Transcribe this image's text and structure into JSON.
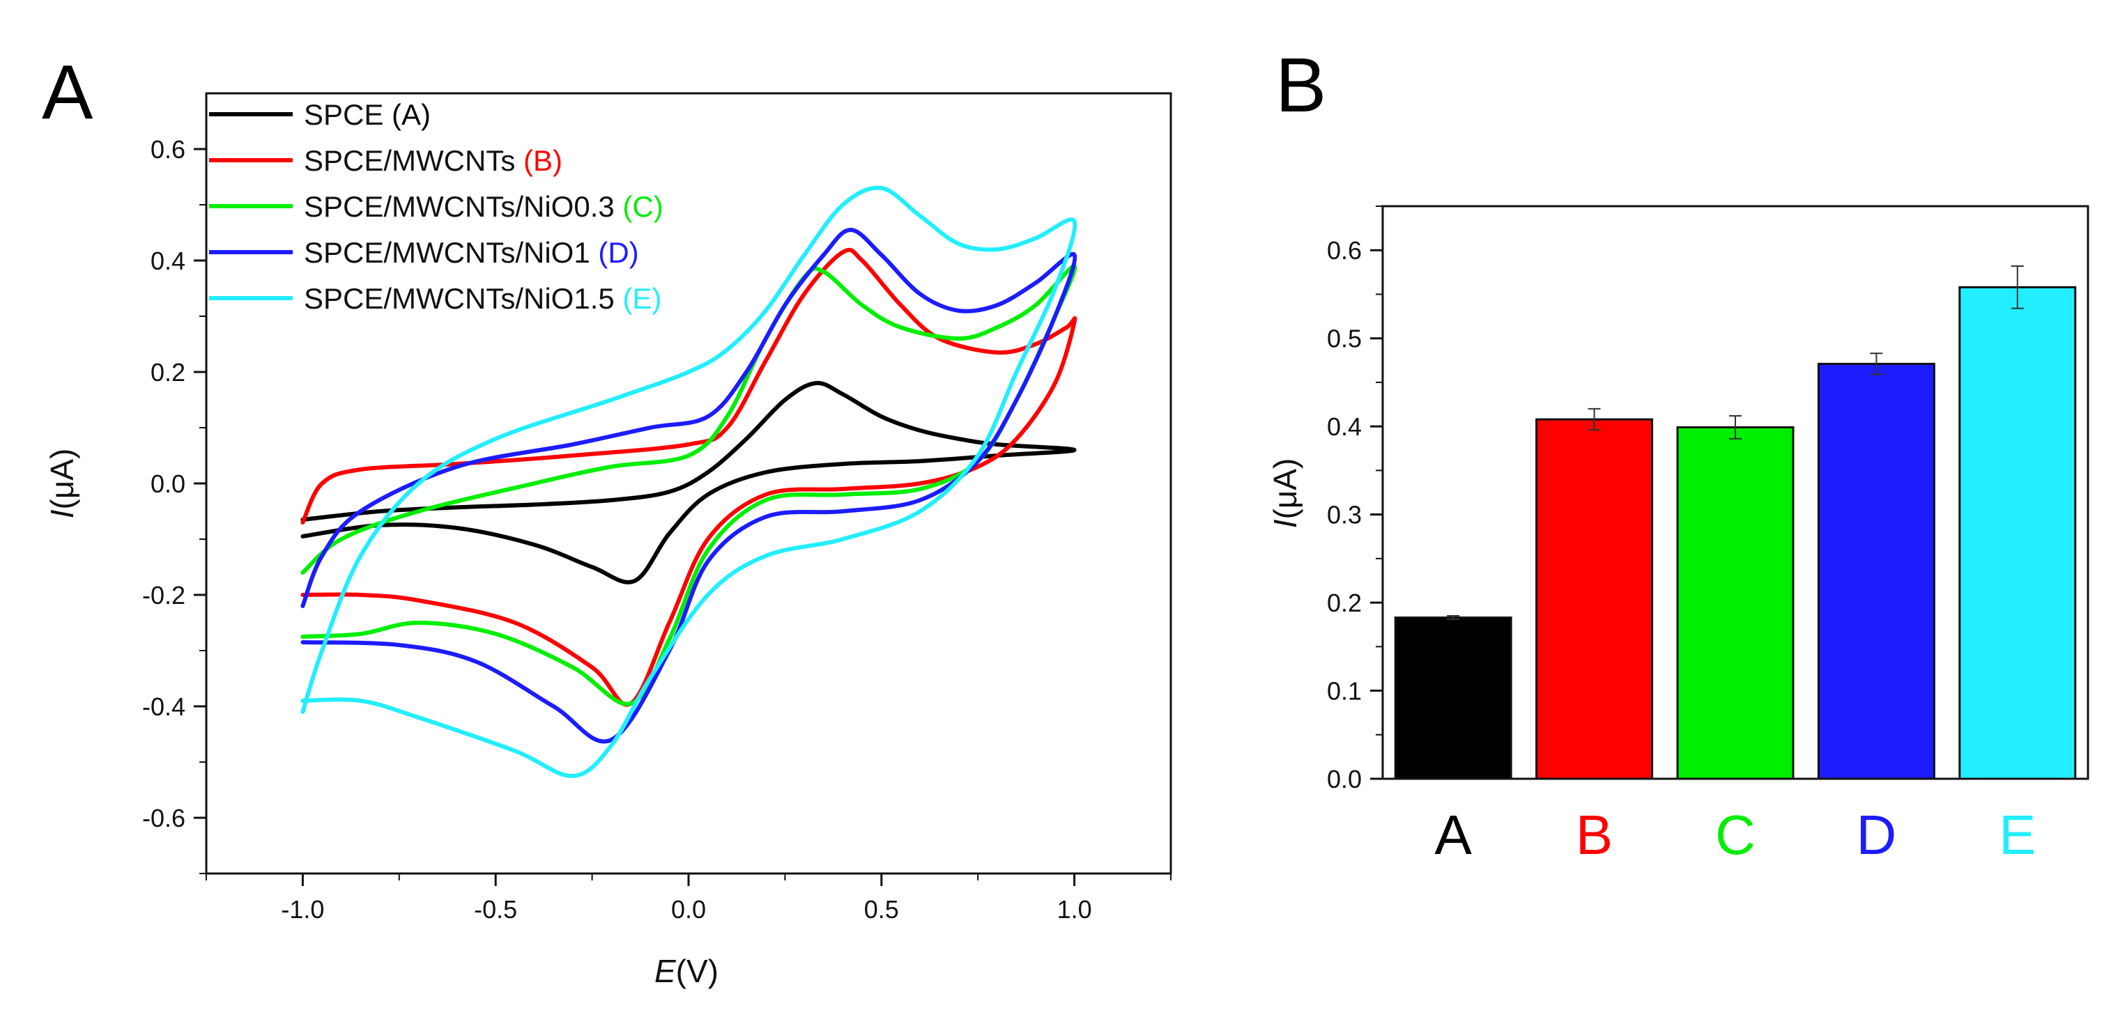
{
  "chart_data": [
    {
      "panel_label": "A",
      "type": "line",
      "xlabel_var": "E",
      "xlabel_unit": "(V)",
      "ylabel_var": "I",
      "ylabel_unit": "(μA)",
      "xlim": [
        -1.25,
        1.25
      ],
      "ylim": [
        -0.7,
        0.7
      ],
      "xticks": [
        "-1.0",
        "-0.5",
        "0.0",
        "0.5",
        "1.0"
      ],
      "xtick_values": [
        -1.0,
        -0.5,
        0.0,
        0.5,
        1.0
      ],
      "yticks": [
        "-0.6",
        "-0.4",
        "-0.2",
        "0.0",
        "0.2",
        "0.4",
        "0.6"
      ],
      "ytick_values": [
        -0.6,
        -0.4,
        -0.2,
        0.0,
        0.2,
        0.4,
        0.6
      ],
      "legend_position": "top-left",
      "series": [
        {
          "name": "SPCE",
          "suffix": "(A)",
          "color": "#000000",
          "forward": [
            [
              -1.0,
              -0.065
            ],
            [
              -0.8,
              -0.05
            ],
            [
              -0.6,
              -0.043
            ],
            [
              -0.4,
              -0.038
            ],
            [
              -0.2,
              -0.03
            ],
            [
              -0.05,
              -0.015
            ],
            [
              0.05,
              0.02
            ],
            [
              0.15,
              0.08
            ],
            [
              0.25,
              0.15
            ],
            [
              0.33,
              0.18
            ],
            [
              0.4,
              0.16
            ],
            [
              0.5,
              0.12
            ],
            [
              0.6,
              0.095
            ],
            [
              0.7,
              0.08
            ],
            [
              0.8,
              0.07
            ],
            [
              1.0,
              0.06
            ]
          ],
          "reverse": [
            [
              1.0,
              0.06
            ],
            [
              0.8,
              0.05
            ],
            [
              0.6,
              0.04
            ],
            [
              0.4,
              0.035
            ],
            [
              0.2,
              0.02
            ],
            [
              0.05,
              -0.02
            ],
            [
              -0.05,
              -0.09
            ],
            [
              -0.14,
              -0.175
            ],
            [
              -0.25,
              -0.15
            ],
            [
              -0.4,
              -0.11
            ],
            [
              -0.6,
              -0.08
            ],
            [
              -0.8,
              -0.075
            ],
            [
              -1.0,
              -0.095
            ]
          ]
        },
        {
          "name": "SPCE/MWCNTs",
          "suffix": "(B)",
          "color": "#ff0000",
          "forward": [
            [
              -1.0,
              -0.07
            ],
            [
              -0.95,
              0.0
            ],
            [
              -0.85,
              0.025
            ],
            [
              -0.6,
              0.035
            ],
            [
              -0.3,
              0.05
            ],
            [
              0.0,
              0.07
            ],
            [
              0.1,
              0.1
            ],
            [
              0.2,
              0.22
            ],
            [
              0.3,
              0.34
            ],
            [
              0.4,
              0.415
            ],
            [
              0.45,
              0.4
            ],
            [
              0.55,
              0.32
            ],
            [
              0.65,
              0.26
            ],
            [
              0.8,
              0.235
            ],
            [
              0.9,
              0.25
            ],
            [
              0.98,
              0.28
            ],
            [
              1.0,
              0.29
            ]
          ],
          "reverse": [
            [
              1.0,
              0.29
            ],
            [
              0.95,
              0.18
            ],
            [
              0.85,
              0.08
            ],
            [
              0.75,
              0.03
            ],
            [
              0.6,
              0.0
            ],
            [
              0.4,
              -0.01
            ],
            [
              0.2,
              -0.02
            ],
            [
              0.05,
              -0.1
            ],
            [
              -0.05,
              -0.25
            ],
            [
              -0.15,
              -0.395
            ],
            [
              -0.25,
              -0.33
            ],
            [
              -0.45,
              -0.25
            ],
            [
              -0.7,
              -0.21
            ],
            [
              -0.85,
              -0.2
            ],
            [
              -1.0,
              -0.2
            ]
          ]
        },
        {
          "name": "SPCE/MWCNTs/NiO0.3",
          "suffix": "(C)",
          "color": "#00ee00",
          "forward": [
            [
              -1.0,
              -0.16
            ],
            [
              -0.9,
              -0.1
            ],
            [
              -0.7,
              -0.05
            ],
            [
              -0.4,
              0.0
            ],
            [
              -0.2,
              0.03
            ],
            [
              0.0,
              0.05
            ],
            [
              0.1,
              0.12
            ],
            [
              0.2,
              0.26
            ],
            [
              0.3,
              0.37
            ],
            [
              0.35,
              0.38
            ],
            [
              0.45,
              0.32
            ],
            [
              0.55,
              0.28
            ],
            [
              0.7,
              0.26
            ],
            [
              0.8,
              0.28
            ],
            [
              0.9,
              0.32
            ],
            [
              1.0,
              0.39
            ]
          ],
          "reverse": [
            [
              1.0,
              0.39
            ],
            [
              0.95,
              0.3
            ],
            [
              0.85,
              0.15
            ],
            [
              0.75,
              0.04
            ],
            [
              0.6,
              -0.01
            ],
            [
              0.4,
              -0.02
            ],
            [
              0.2,
              -0.03
            ],
            [
              0.05,
              -0.12
            ],
            [
              -0.05,
              -0.28
            ],
            [
              -0.15,
              -0.395
            ],
            [
              -0.3,
              -0.33
            ],
            [
              -0.5,
              -0.27
            ],
            [
              -0.7,
              -0.25
            ],
            [
              -0.85,
              -0.27
            ],
            [
              -1.0,
              -0.275
            ]
          ]
        },
        {
          "name": "SPCE/MWCNTs/NiO1",
          "suffix": "(D)",
          "color": "#1c1cff",
          "forward": [
            [
              -1.0,
              -0.22
            ],
            [
              -0.95,
              -0.13
            ],
            [
              -0.85,
              -0.05
            ],
            [
              -0.6,
              0.03
            ],
            [
              -0.3,
              0.07
            ],
            [
              -0.1,
              0.1
            ],
            [
              0.05,
              0.12
            ],
            [
              0.15,
              0.2
            ],
            [
              0.25,
              0.32
            ],
            [
              0.35,
              0.41
            ],
            [
              0.42,
              0.455
            ],
            [
              0.5,
              0.41
            ],
            [
              0.6,
              0.34
            ],
            [
              0.7,
              0.31
            ],
            [
              0.8,
              0.32
            ],
            [
              0.9,
              0.36
            ],
            [
              1.0,
              0.41
            ]
          ],
          "reverse": [
            [
              1.0,
              0.41
            ],
            [
              0.95,
              0.3
            ],
            [
              0.85,
              0.15
            ],
            [
              0.75,
              0.04
            ],
            [
              0.6,
              -0.03
            ],
            [
              0.4,
              -0.05
            ],
            [
              0.2,
              -0.06
            ],
            [
              0.05,
              -0.14
            ],
            [
              -0.05,
              -0.3
            ],
            [
              -0.2,
              -0.46
            ],
            [
              -0.35,
              -0.4
            ],
            [
              -0.55,
              -0.32
            ],
            [
              -0.75,
              -0.29
            ],
            [
              -1.0,
              -0.285
            ]
          ]
        },
        {
          "name": "SPCE/MWCNTs/NiO1.5",
          "suffix": "(E)",
          "color": "#22eeff",
          "forward": [
            [
              -1.0,
              -0.41
            ],
            [
              -0.95,
              -0.3
            ],
            [
              -0.85,
              -0.13
            ],
            [
              -0.7,
              0.0
            ],
            [
              -0.5,
              0.08
            ],
            [
              -0.2,
              0.15
            ],
            [
              0.0,
              0.2
            ],
            [
              0.1,
              0.24
            ],
            [
              0.2,
              0.31
            ],
            [
              0.3,
              0.41
            ],
            [
              0.4,
              0.5
            ],
            [
              0.5,
              0.53
            ],
            [
              0.6,
              0.48
            ],
            [
              0.7,
              0.43
            ],
            [
              0.8,
              0.42
            ],
            [
              0.9,
              0.44
            ],
            [
              1.0,
              0.47
            ]
          ],
          "reverse": [
            [
              1.0,
              0.47
            ],
            [
              0.95,
              0.35
            ],
            [
              0.85,
              0.2
            ],
            [
              0.75,
              0.05
            ],
            [
              0.6,
              -0.05
            ],
            [
              0.4,
              -0.1
            ],
            [
              0.2,
              -0.13
            ],
            [
              0.05,
              -0.2
            ],
            [
              -0.1,
              -0.35
            ],
            [
              -0.2,
              -0.47
            ],
            [
              -0.3,
              -0.525
            ],
            [
              -0.45,
              -0.48
            ],
            [
              -0.7,
              -0.42
            ],
            [
              -0.85,
              -0.39
            ],
            [
              -1.0,
              -0.39
            ]
          ]
        }
      ]
    },
    {
      "panel_label": "B",
      "type": "bar",
      "ylabel_var": "I",
      "ylabel_unit": "(μA)",
      "ylim": [
        0.0,
        0.65
      ],
      "yticks": [
        "0.0",
        "0.1",
        "0.2",
        "0.3",
        "0.4",
        "0.5",
        "0.6"
      ],
      "ytick_values": [
        0.0,
        0.1,
        0.2,
        0.3,
        0.4,
        0.5,
        0.6
      ],
      "categories": [
        "A",
        "B",
        "C",
        "D",
        "E"
      ],
      "colors": [
        "#000000",
        "#ff0000",
        "#00ee00",
        "#1c1cff",
        "#22eeff"
      ],
      "values": [
        0.183,
        0.408,
        0.399,
        0.471,
        0.558
      ],
      "errors": [
        0.002,
        0.012,
        0.013,
        0.012,
        0.024
      ]
    }
  ]
}
